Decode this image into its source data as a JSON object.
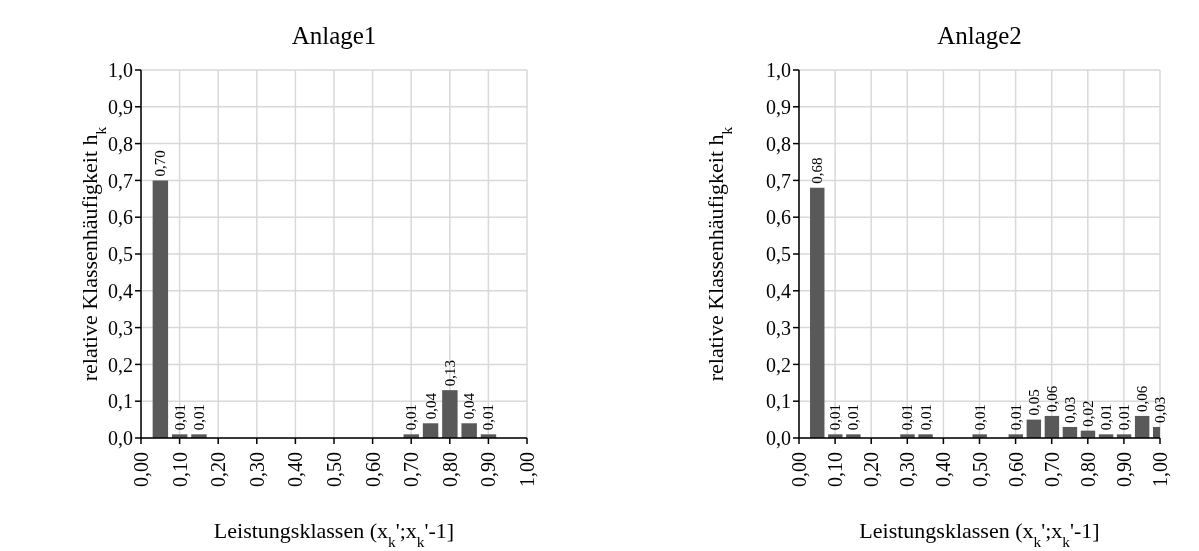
{
  "chart_data": [
    {
      "type": "bar",
      "title": "Anlage1",
      "xlabel": "Leistungsklassen (x$_{k}$';x$_{k}$'-1]",
      "ylabel": "relative Klassenhäufigkeit h$_{k}$",
      "x": [
        0.05,
        0.1,
        0.15,
        0.2,
        0.25,
        0.3,
        0.35,
        0.4,
        0.45,
        0.5,
        0.55,
        0.6,
        0.65,
        0.7,
        0.75,
        0.8,
        0.85,
        0.9,
        0.95,
        1.0
      ],
      "values": [
        0.7,
        0.01,
        0.01,
        0,
        0,
        0,
        0,
        0,
        0,
        0,
        0,
        0,
        0,
        0.01,
        0.04,
        0.13,
        0.04,
        0.01,
        0,
        0
      ],
      "value_labels": [
        "0,70",
        "0,01",
        "0,01",
        null,
        null,
        null,
        null,
        null,
        null,
        null,
        null,
        null,
        null,
        "0,01",
        "0,04",
        "0,13",
        "0,04",
        "0,01",
        null,
        null
      ],
      "color": "#595959",
      "xlim": [
        0,
        1
      ],
      "xticks": [
        {
          "value": 0,
          "label": "0,00"
        },
        {
          "value": 0.1,
          "label": "0,10"
        },
        {
          "value": 0.2,
          "label": "0,20"
        },
        {
          "value": 0.3,
          "label": "0,30"
        },
        {
          "value": 0.4,
          "label": "0,40"
        },
        {
          "value": 0.5,
          "label": "0,50"
        },
        {
          "value": 0.6,
          "label": "0,60"
        },
        {
          "value": 0.7,
          "label": "0,70"
        },
        {
          "value": 0.8,
          "label": "0,80"
        },
        {
          "value": 0.9,
          "label": "0,90"
        },
        {
          "value": 1,
          "label": "1,00"
        }
      ],
      "ylim": [
        0,
        1
      ],
      "yticks": [
        {
          "value": 0,
          "label": "0,0"
        },
        {
          "value": 0.1,
          "label": "0,1"
        },
        {
          "value": 0.2,
          "label": "0,2"
        },
        {
          "value": 0.3,
          "label": "0,3"
        },
        {
          "value": 0.4,
          "label": "0,4"
        },
        {
          "value": 0.5,
          "label": "0,5"
        },
        {
          "value": 0.6,
          "label": "0,6"
        },
        {
          "value": 0.7,
          "label": "0,7"
        },
        {
          "value": 0.8,
          "label": "0,8"
        },
        {
          "value": 0.9,
          "label": "0,9"
        },
        {
          "value": 1,
          "label": "1,0"
        }
      ],
      "grid": true
    },
    {
      "type": "bar",
      "title": "Anlage2",
      "xlabel": "Leistungsklassen (x$_{k}$';x$_{k}$'-1]",
      "ylabel": "relative Klassenhäufigkeit h$_{k}$",
      "x": [
        0.05,
        0.1,
        0.15,
        0.2,
        0.25,
        0.3,
        0.35,
        0.4,
        0.45,
        0.5,
        0.55,
        0.6,
        0.65,
        0.7,
        0.75,
        0.8,
        0.85,
        0.9,
        0.95,
        1.0
      ],
      "values": [
        0.68,
        0.01,
        0.01,
        0,
        0,
        0.01,
        0.01,
        0,
        0,
        0.01,
        0,
        0.01,
        0.05,
        0.06,
        0.03,
        0.02,
        0.01,
        0.01,
        0.06,
        0.03
      ],
      "value_labels": [
        "0,68",
        "0,01",
        "0,01",
        null,
        null,
        "0,01",
        "0,01",
        null,
        null,
        "0,01",
        null,
        "0,01",
        "0,05",
        "0,06",
        "0,03",
        "0,02",
        "0,01",
        "0,01",
        "0,06",
        "0,03"
      ],
      "color": "#595959",
      "xlim": [
        0,
        1
      ],
      "xticks": [
        {
          "value": 0,
          "label": "0,00"
        },
        {
          "value": 0.1,
          "label": "0,10"
        },
        {
          "value": 0.2,
          "label": "0,20"
        },
        {
          "value": 0.3,
          "label": "0,30"
        },
        {
          "value": 0.4,
          "label": "0,40"
        },
        {
          "value": 0.5,
          "label": "0,50"
        },
        {
          "value": 0.6,
          "label": "0,60"
        },
        {
          "value": 0.7,
          "label": "0,70"
        },
        {
          "value": 0.8,
          "label": "0,80"
        },
        {
          "value": 0.9,
          "label": "0,90"
        },
        {
          "value": 1,
          "label": "1,00"
        }
      ],
      "ylim": [
        0,
        1
      ],
      "yticks": [
        {
          "value": 0,
          "label": "0,0"
        },
        {
          "value": 0.1,
          "label": "0,1"
        },
        {
          "value": 0.2,
          "label": "0,2"
        },
        {
          "value": 0.3,
          "label": "0,3"
        },
        {
          "value": 0.4,
          "label": "0,4"
        },
        {
          "value": 0.5,
          "label": "0,5"
        },
        {
          "value": 0.6,
          "label": "0,6"
        },
        {
          "value": 0.7,
          "label": "0,7"
        },
        {
          "value": 0.8,
          "label": "0,8"
        },
        {
          "value": 0.9,
          "label": "0,9"
        },
        {
          "value": 1,
          "label": "1,0"
        }
      ],
      "grid": true
    }
  ]
}
